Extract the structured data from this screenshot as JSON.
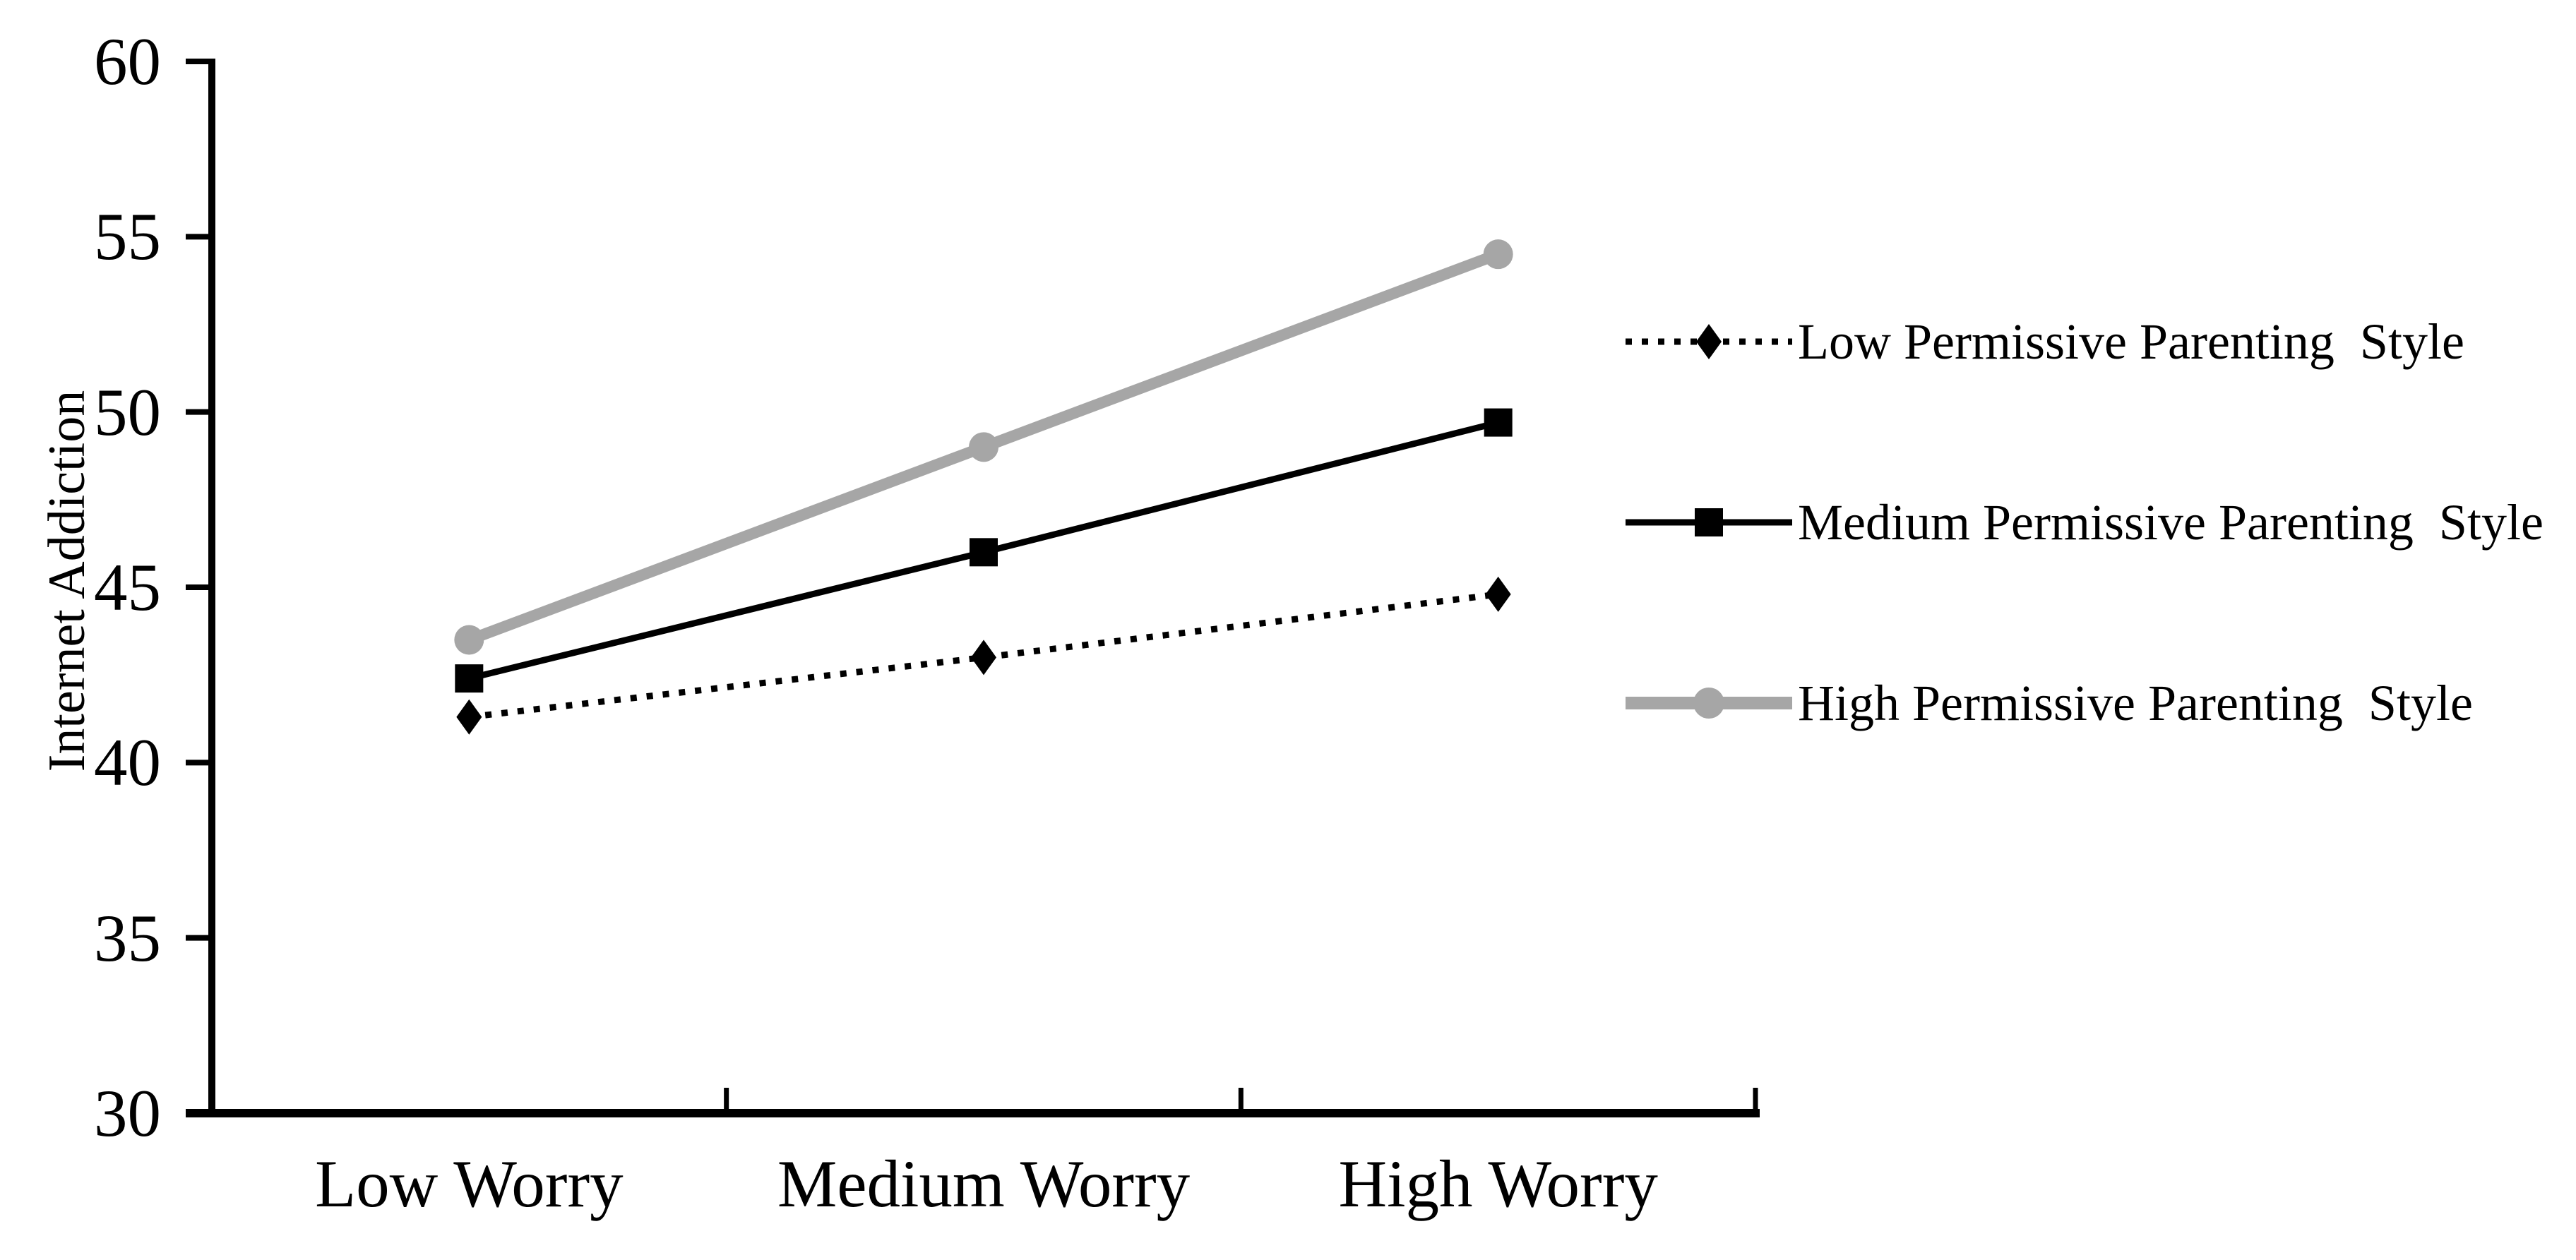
{
  "chart_data": {
    "type": "line",
    "title": "",
    "xlabel": "",
    "ylabel": "Internet Addiction",
    "categories": [
      "Low Worry",
      "Medium Worry",
      "High Worry"
    ],
    "series": [
      {
        "name": "Low Permissive Parenting  Style",
        "values": [
          41.3,
          43.0,
          44.8
        ],
        "color": "#000000",
        "line_style": "dotted",
        "marker": "diamond"
      },
      {
        "name": "Medium Permissive Parenting  Style",
        "values": [
          42.4,
          46.0,
          49.7
        ],
        "color": "#000000",
        "line_style": "solid",
        "marker": "square"
      },
      {
        "name": "High Permissive Parenting  Style",
        "values": [
          43.5,
          49.0,
          54.5
        ],
        "color": "#a6a6a6",
        "line_style": "solid-thick",
        "marker": "circle"
      }
    ],
    "ylim": [
      30,
      60
    ],
    "y_ticks": [
      60,
      55,
      50,
      45,
      40,
      35,
      30
    ],
    "grid": false,
    "legend_position": "right-middle",
    "axis_color": "#000000",
    "background": "#ffffff"
  }
}
